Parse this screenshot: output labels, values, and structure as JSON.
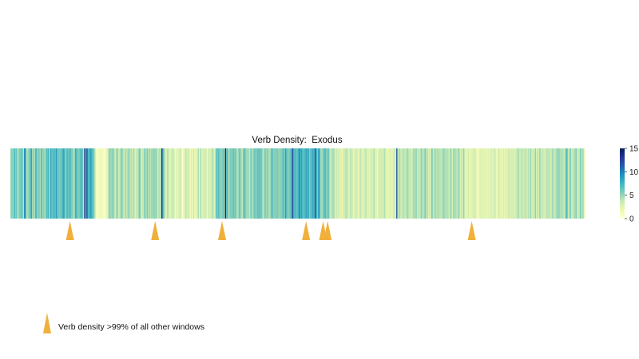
{
  "chart_data": {
    "type": "heatmap",
    "title": "Verb Density:  Exodus",
    "xlabel": "",
    "ylabel": "",
    "windows": 540,
    "value_range": [
      0,
      15
    ],
    "colorbar": {
      "ticks": [
        0,
        5,
        10,
        15
      ],
      "colormap": "YlGnBu",
      "stops": [
        "#ffffd9",
        "#edf8b1",
        "#c7e9b4",
        "#7fcdbb",
        "#41b6c4",
        "#1d91c0",
        "#225ea8",
        "#253494",
        "#081d58"
      ]
    },
    "densities": [
      5.06,
      5.63,
      4.57,
      7.72,
      5.33,
      6.38,
      3.89,
      5.31,
      5.86,
      5.91,
      6.77,
      3.94,
      9.52,
      7.83,
      3.91,
      4.88,
      5.54,
      6.33,
      8.34,
      4.76,
      5.5,
      4.29,
      8.33,
      4.85,
      5.8,
      5.49,
      4.59,
      7.66,
      4.62,
      5.62,
      3.87,
      6.77,
      6.27,
      7.62,
      4.12,
      8.19,
      6.64,
      6.43,
      7.62,
      6.19,
      8.83,
      5.81,
      6.31,
      5.54,
      6.44,
      6.24,
      8.37,
      7.75,
      5.03,
      6.68,
      7.26,
      5.66,
      7.94,
      5.73,
      5.62,
      4.52,
      4.91,
      7.98,
      6.8,
      5.59,
      5.71,
      6.42,
      7.28,
      6.31,
      3.51,
      13.13,
      6.9,
      11.79,
      6.92,
      7.11,
      8.5,
      7.79,
      6.41,
      5.87,
      4.05,
      1.55,
      0.0,
      1.38,
      1.22,
      1.51,
      1.64,
      1.41,
      0.4,
      1.05,
      1.47,
      2.62,
      4.07,
      5.64,
      4.8,
      4.89,
      6.02,
      4.08,
      3.33,
      4.77,
      5.2,
      3.31,
      3.92,
      5.35,
      5.41,
      4.0,
      3.22,
      4.98,
      3.84,
      4.47,
      5.46,
      3.78,
      4.45,
      3.25,
      4.69,
      3.72,
      2.22,
      4.45,
      3.27,
      6.08,
      5.3,
      2.45,
      3.69,
      3.83,
      6.44,
      3.62,
      6.08,
      3.98,
      5.22,
      4.07,
      5.03,
      4.66,
      5.49,
      4.71,
      5.64,
      3.17,
      3.93,
      4.44,
      4.1,
      13.28,
      6.76,
      5.36,
      3.02,
      2.78,
      4.43,
      3.5,
      2.13,
      2.58,
      3.97,
      3.26,
      2.92,
      0.77,
      2.7,
      2.06,
      2.68,
      3.46,
      3.21,
      0.0,
      1.95,
      2.42,
      3.92,
      3.25,
      3.07,
      3.4,
      1.18,
      2.91,
      1.61,
      3.34,
      1.82,
      2.81,
      1.82,
      4.73,
      1.71,
      4.65,
      2.71,
      2.58,
      3.54,
      2.82,
      3.19,
      1.34,
      3.56,
      2.7,
      2.97,
      3.71,
      4.55,
      2.4,
      3.64,
      6.62,
      5.92,
      6.86,
      5.47,
      5.37,
      5.29,
      6.8,
      4.33,
      14.04,
      6.66,
      7.19,
      3.84,
      5.84,
      5.57,
      5.57,
      6.54,
      5.47,
      6.3,
      4.4,
      4.1,
      6.39,
      5.5,
      4.62,
      3.82,
      6.74,
      6.3,
      5.5,
      4.26,
      5.55,
      3.12,
      5.3,
      5.43,
      4.36,
      5.47,
      6.61,
      4.96,
      6.72,
      6.35,
      6.61,
      6.17,
      5.92,
      4.07,
      4.39,
      6.15,
      4.73,
      5.65,
      4.56,
      4.36,
      5.1,
      7.81,
      5.26,
      5.4,
      5.64,
      5.4,
      5.95,
      4.89,
      5.42,
      5.19,
      6.04,
      6.96,
      5.52,
      8.54,
      6.45,
      5.64,
      5.46,
      6.59,
      6.14,
      12.46,
      7.88,
      6.93,
      7.16,
      6.3,
      7.23,
      9.9,
      7.45,
      8.48,
      6.95,
      6.52,
      7.1,
      8.48,
      7.07,
      8.5,
      5.6,
      6.63,
      7.1,
      8.17,
      6.64,
      11.72,
      8.44,
      5.43,
      8.49,
      7.75,
      4.61,
      4.59,
      5.52,
      6.73,
      6.95,
      5.45,
      5.86,
      6.2,
      3.75,
      3.57,
      4.45,
      4.64,
      4.32,
      2.21,
      3.74,
      2.58,
      3.65,
      2.14,
      2.65,
      1.77,
      3.43,
      3.21,
      4.04,
      4.17,
      3.11,
      2.12,
      4.18,
      3.42,
      3.13,
      1.86,
      2.91,
      3.13,
      3.47,
      1.49,
      3.07,
      3.94,
      2.76,
      2.41,
      2.53,
      3.75,
      4.05,
      2.28,
      2.73,
      2.29,
      3.09,
      3.06,
      3.08,
      4.51,
      2.51,
      2.49,
      1.54,
      3.02,
      3.43,
      3.06,
      3.56,
      2.57,
      4.48,
      3.21,
      1.97,
      2.42,
      2.04,
      2.9,
      2.14,
      2.4,
      2.72,
      3.73,
      2.59,
      11.6,
      2.72,
      5.19,
      3.62,
      3.64,
      3.85,
      4.37,
      3.68,
      3.58,
      5.07,
      4.29,
      3.67,
      3.81,
      3.07,
      3.74,
      5.29,
      3.69,
      5.59,
      3.48,
      3.96,
      3.72,
      4.27,
      5.72,
      3.02,
      4.68,
      5.74,
      3.99,
      4.38,
      2.63,
      3.73,
      3.02,
      6.37,
      3.57,
      4.22,
      4.96,
      3.82,
      4.8,
      4.05,
      4.11,
      3.84,
      4.31,
      5.13,
      4.76,
      4.15,
      4.29,
      4.33,
      3.04,
      4.77,
      4.61,
      2.79,
      5.04,
      4.5,
      4.55,
      3.58,
      4.82,
      4.7,
      2.78,
      3.7,
      3.65,
      5.1,
      2.42,
      2.44,
      2.09,
      3.34,
      2.02,
      1.95,
      2.6,
      2.51,
      3.42,
      2.99,
      2.31,
      1.25,
      1.23,
      2.5,
      2.68,
      2.31,
      2.37,
      2.6,
      2.13,
      2.45,
      2.14,
      2.76,
      1.56,
      3.38,
      2.48,
      2.31,
      3.75,
      2.69,
      1.59,
      2.01,
      3.91,
      1.74,
      2.84,
      1.86,
      2.93,
      1.8,
      3.2,
      1.63,
      3.36,
      3.69,
      2.2,
      3.21,
      3.09,
      3.1,
      2.47,
      3.62,
      3.5,
      4.86,
      3.44,
      3.38,
      4.07,
      3.73,
      3.09,
      4.34,
      3.42,
      3.37,
      4.25,
      3.26,
      4.94,
      2.81,
      3.81,
      2.5,
      5.51,
      2.76,
      4.05,
      3.18,
      5.14,
      3.56,
      3.81,
      3.46,
      3.16,
      2.96,
      4.17,
      4.14,
      3.81,
      3.97,
      2.96,
      4.87,
      4.16,
      3.47,
      4.18,
      4.88,
      5.07,
      5.14,
      4.33,
      4.39,
      4.28,
      3.98,
      3.47,
      6.63,
      6.85,
      3.48,
      4.37,
      5.73,
      3.3,
      3.85,
      4.2,
      4.64,
      5.53,
      3.27,
      3.57,
      3.91,
      6.28,
      2.97,
      5.18,
      2.24
    ],
    "markers_window_index": [
      52,
      127,
      186,
      260,
      275,
      279,
      406
    ]
  },
  "legend": {
    "marker_icon": "orange-triangle-marker",
    "marker_color": "#f0b03c",
    "label": "Verb density >99% of all other windows"
  }
}
